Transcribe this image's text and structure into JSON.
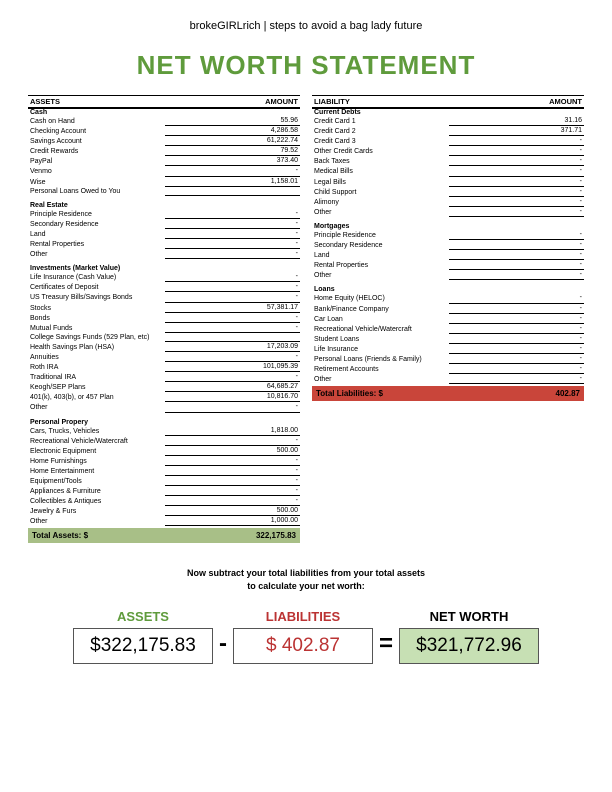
{
  "site_title": "brokeGIRLrich | steps to avoid a bag lady future",
  "main_title": "NET WORTH STATEMENT",
  "assets_header": "ASSETS",
  "liability_header": "LIABILITY",
  "amount_header": "AMOUNT",
  "assets": {
    "sections": [
      {
        "title": "Cash",
        "rows": [
          {
            "label": "Cash on Hand",
            "value": "55.96"
          },
          {
            "label": "Checking Account",
            "value": "4,286.58"
          },
          {
            "label": "Savings Account",
            "value": "61,222.74"
          },
          {
            "label": "Credit Rewards",
            "value": "79.52"
          },
          {
            "label": "PayPal",
            "value": "373.40"
          },
          {
            "label": "Venmo",
            "value": "-"
          },
          {
            "label": "Wise",
            "value": "1,158.01"
          },
          {
            "label": "Personal Loans Owed to You",
            "value": ""
          }
        ]
      },
      {
        "title": "Real Estate",
        "rows": [
          {
            "label": "Principle Residence",
            "value": "-"
          },
          {
            "label": "Secondary Residence",
            "value": "-"
          },
          {
            "label": "Land",
            "value": "-"
          },
          {
            "label": "Rental Properties",
            "value": "-"
          },
          {
            "label": "Other",
            "value": "-"
          }
        ]
      },
      {
        "title": "Investments (Market Value)",
        "rows": [
          {
            "label": "Life Insurance (Cash Value)",
            "value": "-"
          },
          {
            "label": "Certificates of Deposit",
            "value": "-"
          },
          {
            "label": "US Treasury Bills/Savings Bonds",
            "value": "-"
          },
          {
            "label": "Stocks",
            "value": "57,381.17"
          },
          {
            "label": "Bonds",
            "value": "-"
          },
          {
            "label": "Mutual Funds",
            "value": "-"
          },
          {
            "label": "College Savings Funds (529 Plan, etc)",
            "value": ""
          },
          {
            "label": "Health Savings Plan (HSA)",
            "value": "17,203.09"
          },
          {
            "label": "Annuities",
            "value": "-"
          },
          {
            "label": "Roth IRA",
            "value": "101,095.39"
          },
          {
            "label": "Traditional IRA",
            "value": "-"
          },
          {
            "label": "Keogh/SEP Plans",
            "value": "64,685.27"
          },
          {
            "label": "401(k), 403(b), or 457 Plan",
            "value": "10,816.70"
          },
          {
            "label": "Other",
            "value": "-"
          }
        ]
      },
      {
        "title": "Personal Propery",
        "rows": [
          {
            "label": "Cars, Trucks, Vehicles",
            "value": "1,818.00"
          },
          {
            "label": "Recreational Vehicle/Watercraft",
            "value": "-"
          },
          {
            "label": "Electronic Equipment",
            "value": "500.00"
          },
          {
            "label": "Home Furnishings",
            "value": "-"
          },
          {
            "label": "Home Entertainment",
            "value": "-"
          },
          {
            "label": "Equipment/Tools",
            "value": "-"
          },
          {
            "label": "Appliances & Furniture",
            "value": "-"
          },
          {
            "label": "Collectibles & Antiques",
            "value": "-"
          },
          {
            "label": "Jewelry & Furs",
            "value": "500.00"
          },
          {
            "label": "Other",
            "value": "1,000.00"
          }
        ]
      }
    ],
    "total_label": "Total Assets: $",
    "total_value": "322,175.83"
  },
  "liabilities": {
    "sections": [
      {
        "title": "Current Debts",
        "rows": [
          {
            "label": "Credit Card 1",
            "value": "31.16"
          },
          {
            "label": "Credit Card 2",
            "value": "371.71"
          },
          {
            "label": "Credit Card 3",
            "value": "-"
          },
          {
            "label": "Other Credit Cards",
            "value": "-"
          },
          {
            "label": "Back Taxes",
            "value": "-"
          },
          {
            "label": "Medical Bills",
            "value": "-"
          },
          {
            "label": "Legal Bills",
            "value": "-"
          },
          {
            "label": "Child Support",
            "value": "-"
          },
          {
            "label": "Alimony",
            "value": "-"
          },
          {
            "label": "Other",
            "value": "-"
          }
        ]
      },
      {
        "title": "Mortgages",
        "rows": [
          {
            "label": "Principle Residence",
            "value": "-"
          },
          {
            "label": "Secondary Residence",
            "value": "-"
          },
          {
            "label": "Land",
            "value": "-"
          },
          {
            "label": "Rental Properties",
            "value": "-"
          },
          {
            "label": "Other",
            "value": "-"
          }
        ]
      },
      {
        "title": "Loans",
        "rows": [
          {
            "label": "Home Equity (HELOC)",
            "value": "-"
          },
          {
            "label": "Bank/Finance Company",
            "value": "-"
          },
          {
            "label": "Car Loan",
            "value": "-"
          },
          {
            "label": "Recreational Vehicle/Watercraft",
            "value": "-"
          },
          {
            "label": "Student Loans",
            "value": "-"
          },
          {
            "label": "Life Insurance",
            "value": "-"
          },
          {
            "label": "Personal Loans (Friends & Family)",
            "value": "-"
          },
          {
            "label": "Retirement Accounts",
            "value": "-"
          },
          {
            "label": "Other",
            "value": "-"
          }
        ]
      }
    ],
    "total_label": "Total Liabilities: $",
    "total_value": "402.87"
  },
  "instruction": "Now subtract your total liabilities from your total assets\nto calculate your net worth:",
  "calc": {
    "assets_label": "ASSETS",
    "assets_value": "$322,175.83",
    "minus": "-",
    "liab_label": "LIABILITIES",
    "liab_value": "$   402.87",
    "equals": "=",
    "nw_label": "NET WORTH",
    "nw_value": "$321,772.96"
  },
  "colors": {
    "title_green": "#5f9b3c",
    "assets_total_bg": "#a8bf87",
    "liab_total_bg": "#c9453a",
    "networth_bg": "#c7e0b4",
    "liab_red": "#b33333"
  }
}
